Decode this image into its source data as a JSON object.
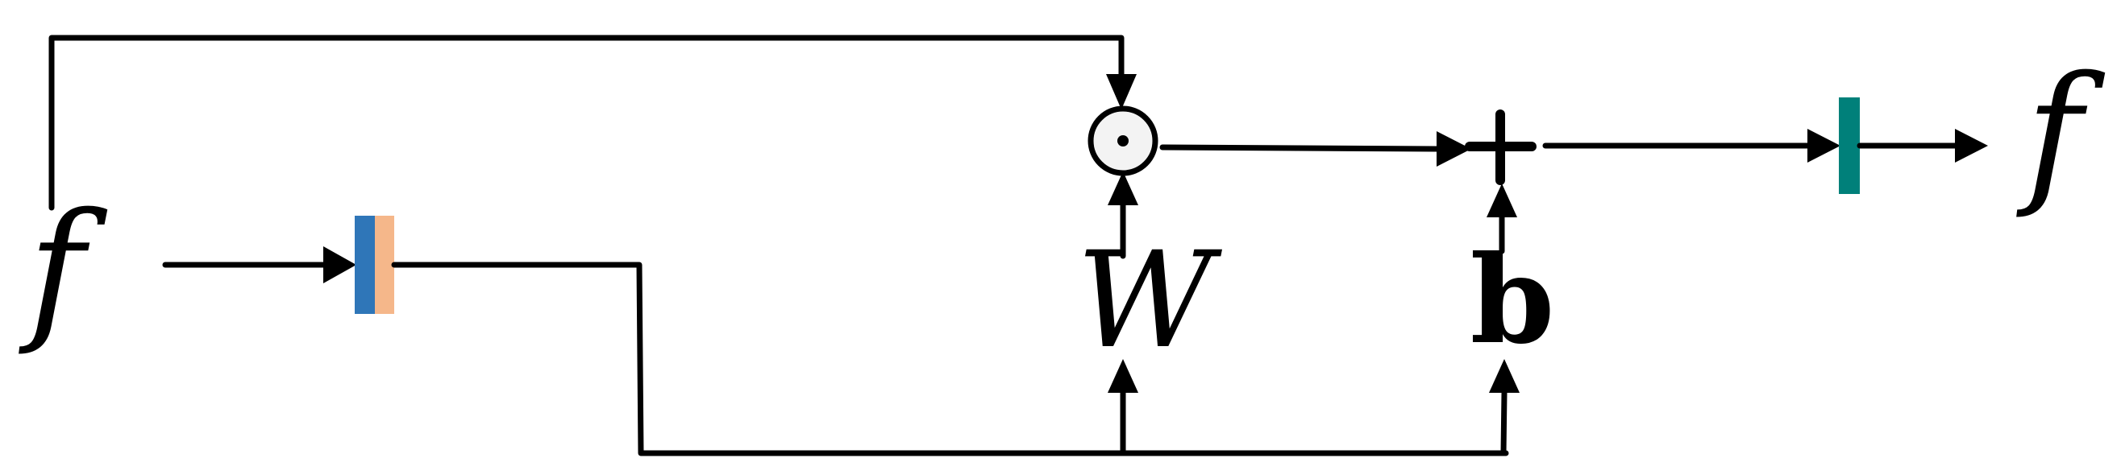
{
  "labels": {
    "input_symbol": "f",
    "output_symbol": "f",
    "weight_symbol": "W",
    "bias_symbol": "b",
    "multiply_operator": "⊙",
    "add_operator": "+"
  },
  "colors": {
    "line": "#000000",
    "layer_left_half": "#2f76b8",
    "layer_right_half": "#f5b78a",
    "output_layer": "#00807a",
    "multiply_node_fill": "#f3f3f3"
  },
  "icons": {
    "input_layer": "split-layer-block",
    "multiply_node": "hadamard-product-node",
    "add_node": "plus-node",
    "output_layer": "output-layer-block",
    "arrow": "triangle-arrowhead"
  }
}
